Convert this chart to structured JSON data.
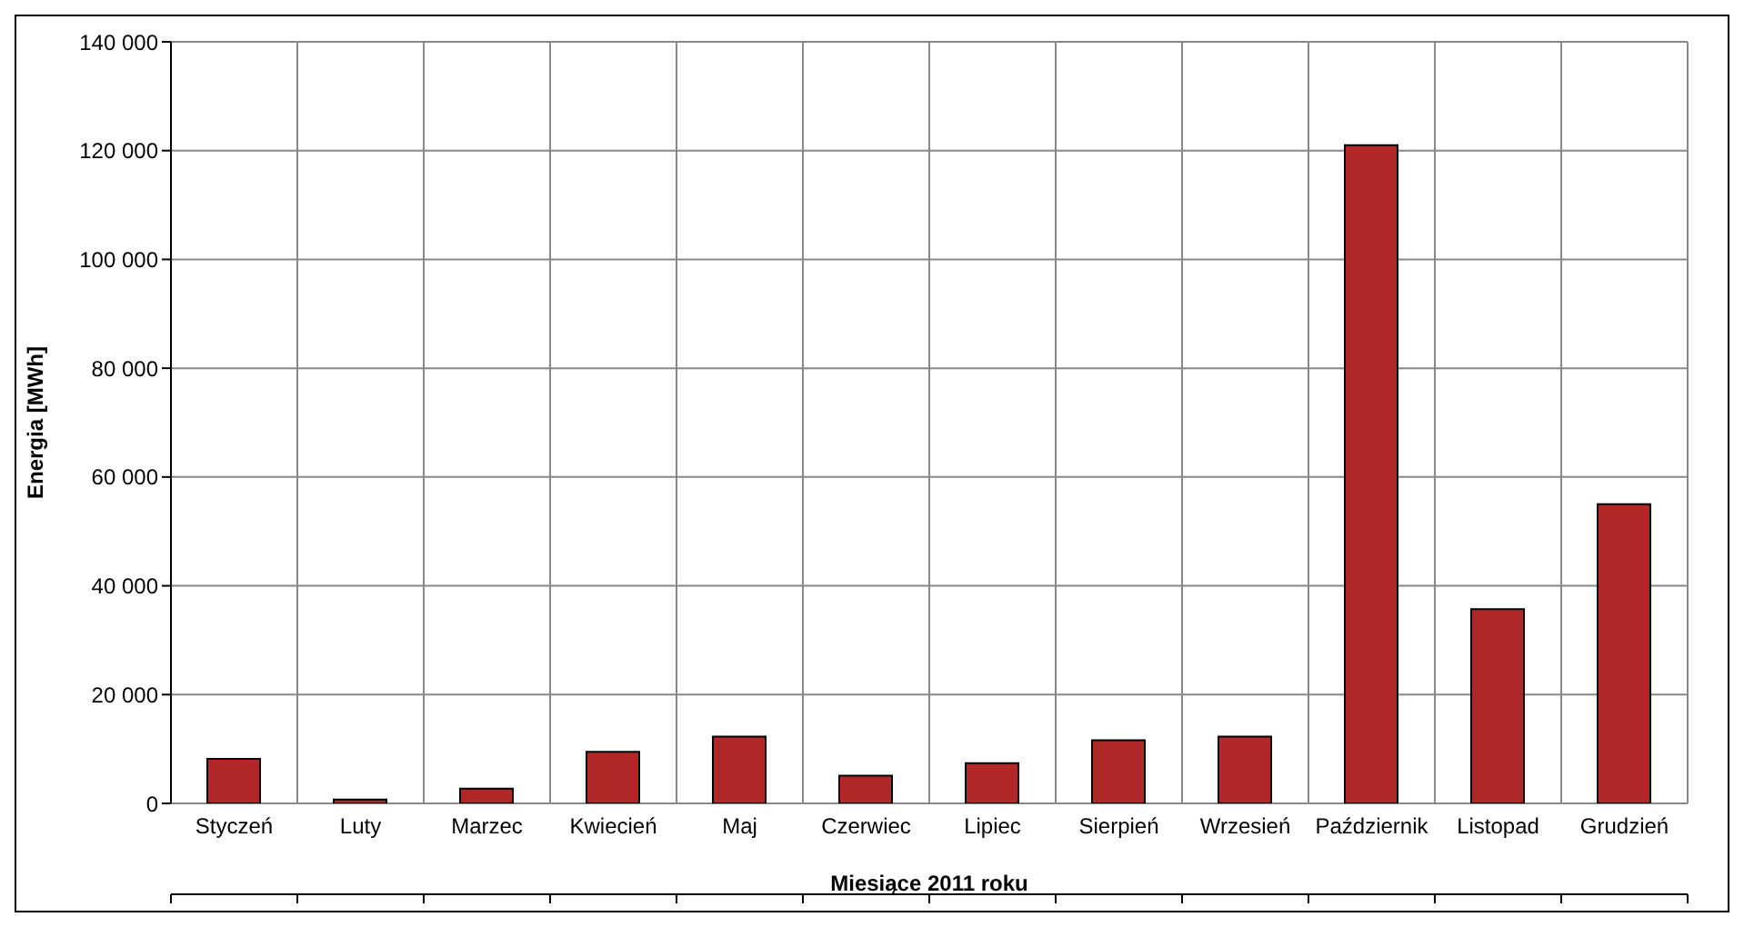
{
  "chart_data": {
    "type": "bar",
    "xlabel": "Miesiące 2011  roku",
    "ylabel": "Energia  [MWh]",
    "categories": [
      "Styczeń",
      "Luty",
      "Marzec",
      "Kwiecień",
      "Maj",
      "Czerwiec",
      "Lipiec",
      "Sierpień",
      "Wrzesień",
      "Październik",
      "Listopad",
      "Grudzień"
    ],
    "values": [
      8200,
      700,
      2700,
      9500,
      12300,
      5100,
      7400,
      11600,
      12300,
      121000,
      35700,
      55000
    ],
    "color": "#b22828",
    "ylim": [
      0,
      140000
    ],
    "yticks": [
      {
        "value": 0,
        "label": "0"
      },
      {
        "value": 20000,
        "label": "20 000"
      },
      {
        "value": 40000,
        "label": "40 000"
      },
      {
        "value": 60000,
        "label": "60 000"
      },
      {
        "value": 80000,
        "label": "80 000"
      },
      {
        "value": 100000,
        "label": "100 000"
      },
      {
        "value": 120000,
        "label": "120 000"
      },
      {
        "value": 140000,
        "label": "140 000"
      }
    ],
    "grid": true
  }
}
